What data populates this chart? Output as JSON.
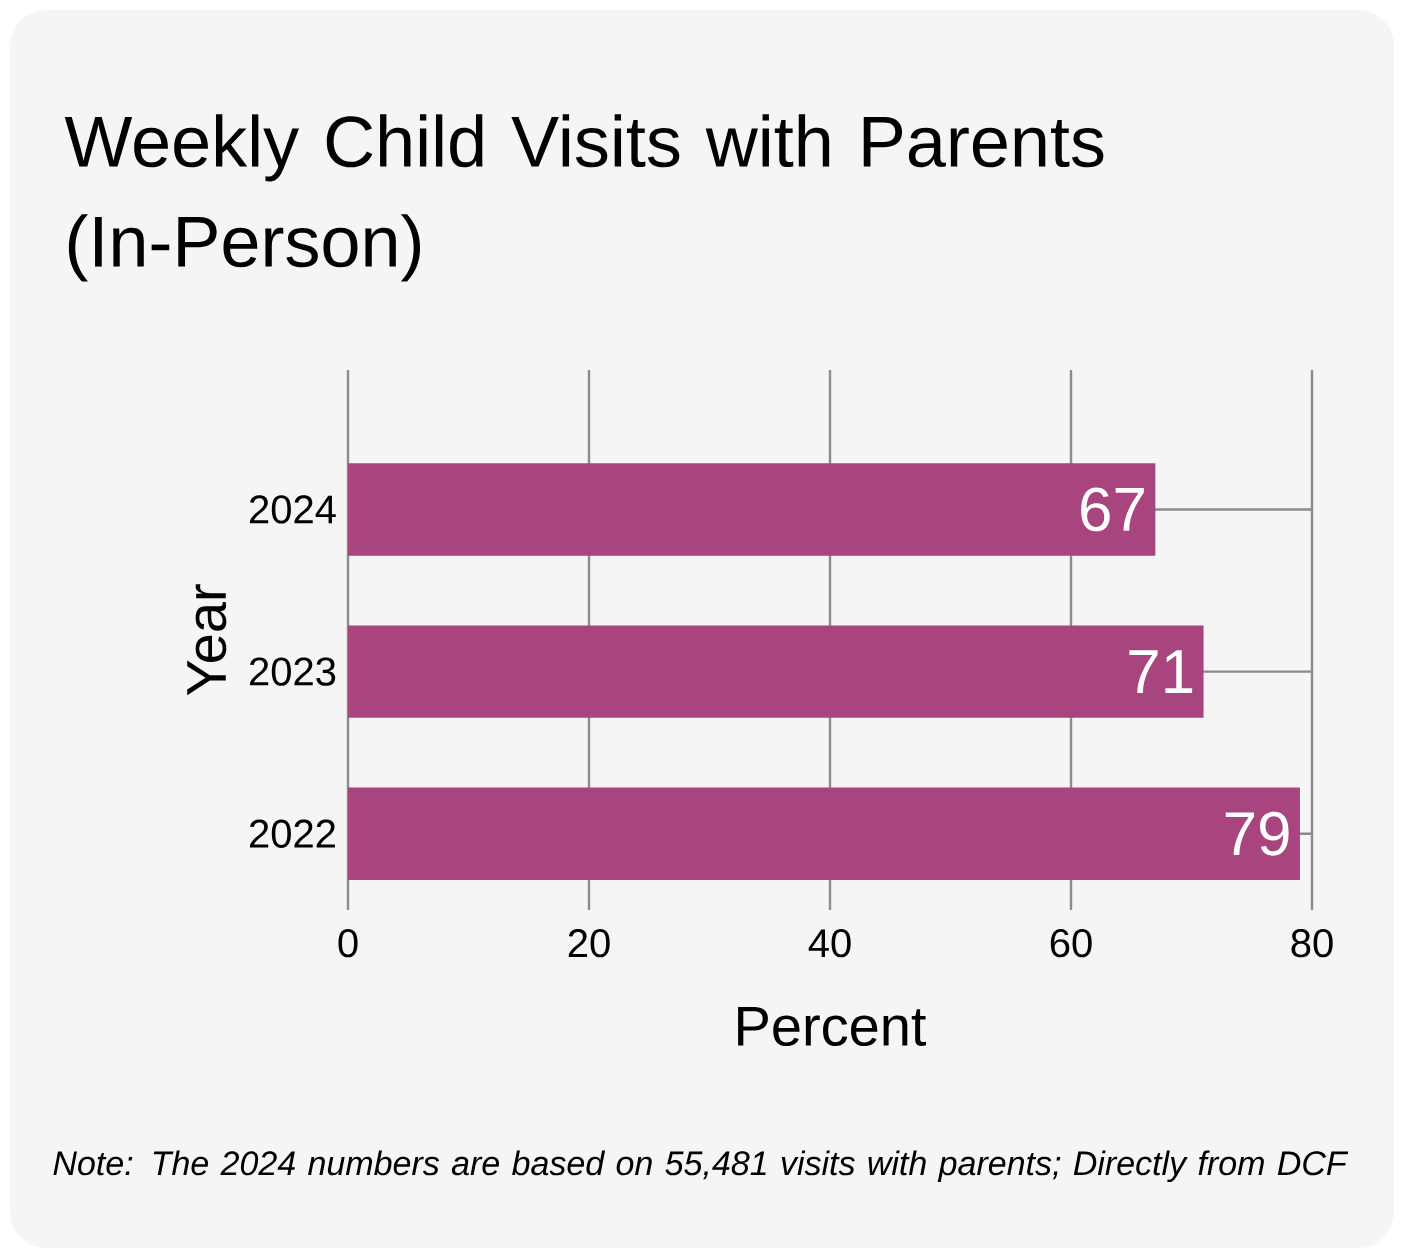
{
  "chart_data": {
    "type": "bar",
    "orientation": "horizontal",
    "title": "Weekly Child Visits with Parents (In-Person)",
    "xlabel": "Percent",
    "ylabel": "Year",
    "categories": [
      "2024",
      "2023",
      "2022"
    ],
    "values": [
      67,
      71,
      79
    ],
    "color": "#a8457e",
    "xlim": [
      0,
      80
    ],
    "xticks": [
      0,
      20,
      40,
      60,
      80
    ],
    "grid": true,
    "data_labels": true,
    "annotations": [
      "Note:  The 2024 numbers are based on 55,481 visits with parents; Directly from DCF"
    ]
  }
}
